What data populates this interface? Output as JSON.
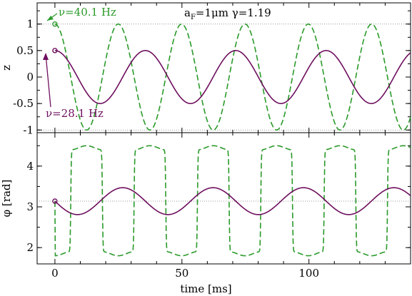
{
  "colors": {
    "green": "#2a9a2a",
    "purple": "#6e0f5e",
    "axis": "#000000",
    "refline": "#777777"
  },
  "chart_data": [
    {
      "panel": "top",
      "type": "line",
      "ylabel": "z",
      "xlabel": "",
      "xlim": [
        -7,
        140
      ],
      "ylim": [
        -1.05,
        1.4
      ],
      "yticks": [
        -1,
        -0.5,
        0,
        0.5,
        1
      ],
      "ytick_labels": [
        "-1",
        "-0.5",
        "0",
        "0.5",
        "1"
      ],
      "xticks": [
        0,
        50,
        100
      ],
      "grid": false,
      "reference_lines": [
        1,
        -1
      ],
      "annotation_params": "a_F=1μm  γ=1.19",
      "series": [
        {
          "name": "ν=40.1 Hz",
          "style": "dashed",
          "color": "green",
          "function": "cosine",
          "amplitude": 1.0,
          "offset": 0.0,
          "frequency_hz": 40.1,
          "start_marker": [
            0,
            1.0
          ]
        },
        {
          "name": "ν=28.1 Hz",
          "style": "solid",
          "color": "purple",
          "function": "cosine",
          "amplitude": 0.5,
          "offset": 0.0,
          "frequency_hz": 28.1,
          "start_marker": [
            0,
            0.5
          ]
        }
      ],
      "annotations": [
        {
          "text": "ν=40.1 Hz",
          "color": "green",
          "points_to": [
            0,
            1.0
          ]
        },
        {
          "text": "ν=28.1 Hz",
          "color": "purple",
          "points_to": [
            0,
            0.5
          ]
        }
      ]
    },
    {
      "panel": "bottom",
      "type": "line",
      "ylabel": "φ [rad]",
      "xlabel": "time [ms]",
      "xlim": [
        -7,
        140
      ],
      "ylim": [
        1.6,
        4.82
      ],
      "yticks": [
        2,
        3,
        4
      ],
      "ytick_labels": [
        "2",
        "3",
        "4"
      ],
      "xticks": [
        0,
        50,
        100
      ],
      "xtick_labels": [
        "0",
        "50",
        "100"
      ],
      "grid": false,
      "reference_lines": [
        3.14
      ],
      "series": [
        {
          "name": "ν=40.1 Hz",
          "style": "dashed",
          "color": "green",
          "function": "square_wave",
          "low": 1.85,
          "high": 4.45,
          "frequency_hz": 40.1
        },
        {
          "name": "ν=28.1 Hz",
          "style": "solid",
          "color": "purple",
          "function": "negative_sine",
          "amplitude": 0.33,
          "offset": 3.14,
          "frequency_hz": 28.1,
          "start_marker": [
            0,
            3.14
          ]
        }
      ]
    }
  ]
}
